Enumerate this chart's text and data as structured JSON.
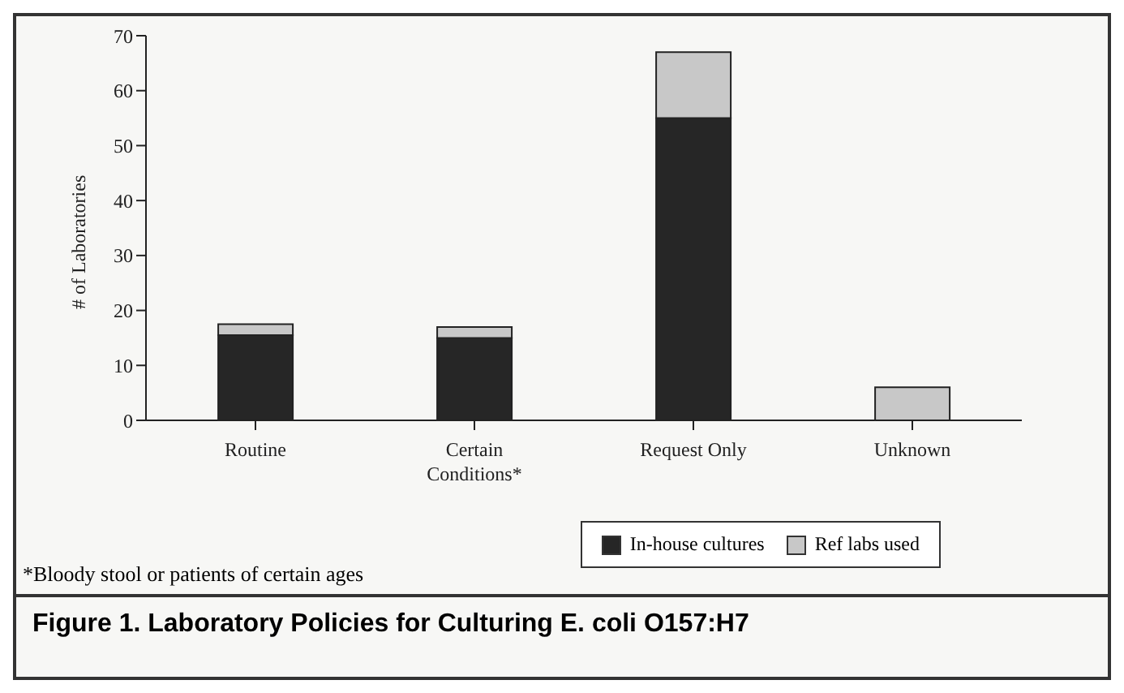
{
  "chart_data": {
    "type": "bar",
    "title": "Figure 1. Laboratory Policies for Culturing E. coli O157:H7",
    "ylabel": "# of Laboratories",
    "categories": [
      "Routine",
      "Certain Conditions*",
      "Request Only",
      "Unknown"
    ],
    "stacked": true,
    "series": [
      {
        "name": "In-house cultures",
        "color": "#262626",
        "values": [
          15.5,
          15,
          55,
          0
        ]
      },
      {
        "name": "Ref labs used",
        "color": "#c8c8c8",
        "values": [
          2,
          2,
          12,
          6
        ]
      }
    ],
    "ylim": [
      0,
      70
    ],
    "yticks": [
      0,
      10,
      20,
      30,
      40,
      50,
      60,
      70
    ],
    "legend": "bottom right",
    "annotations": [
      "*Bloody stool or patients of certain ages"
    ]
  }
}
